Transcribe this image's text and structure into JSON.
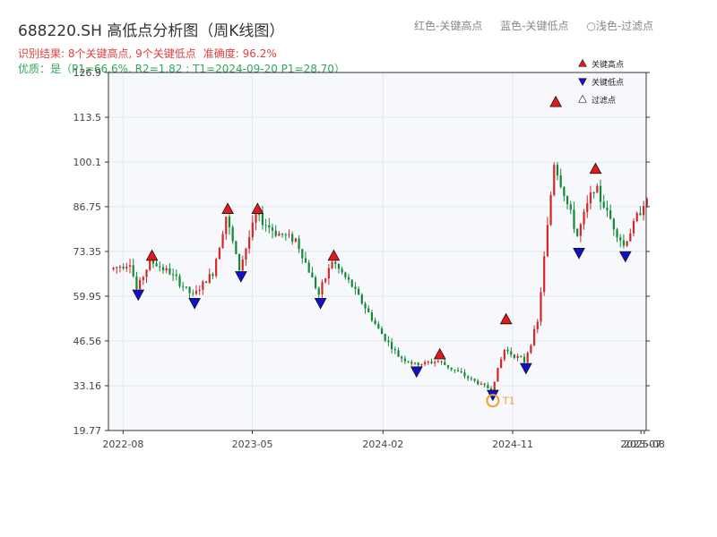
{
  "header": {
    "title": "688220.SH 高低点分析图（周K线图）",
    "legend_high": "红色-关键高点",
    "legend_low": "蓝色-关键低点",
    "legend_filtered": "○浅色-过滤点",
    "result": "识别结果: 8个关键高点, 9个关键低点",
    "accuracy": "准确度: 96.2%",
    "quality": "优质：是（P1=66.6%, R2=1.82 ; T1=2024-09-20 P1=28.70）"
  },
  "colors": {
    "up": "#d62728",
    "down": "#138a36",
    "high_marker": "#e81818",
    "low_marker": "#1010d0",
    "t1_marker": "#f0a030",
    "plot_bg": "#f6f8fb",
    "grid": "#e3e7ed"
  },
  "chart_data": {
    "type": "candlestick",
    "title": "688220.SH 高低点分析图（周K线图）",
    "x_ticks": [
      "2022-08",
      "2023-05",
      "2024-02",
      "2024-11",
      "2025-07",
      "2025-08"
    ],
    "y_ticks": [
      "19.77",
      "33.16",
      "46.56",
      "59.95",
      "73.35",
      "86.75",
      "100.1",
      "113.5",
      "126.9"
    ],
    "ylim": [
      19.77,
      126.9
    ],
    "xlim": [
      "2022-07-01",
      "2025-08-10"
    ],
    "grid": true,
    "legend_position": "top-right",
    "legend": {
      "high": "关键高点",
      "low": "关键低点",
      "filtered": "过滤点"
    },
    "key_highs": [
      {
        "date": "2022-10-01",
        "price": 72.0
      },
      {
        "date": "2023-03-10",
        "price": 86.0
      },
      {
        "date": "2023-05-12",
        "price": 86.0
      },
      {
        "date": "2023-10-20",
        "price": 72.0
      },
      {
        "date": "2024-05-31",
        "price": 42.5
      },
      {
        "date": "2024-10-18",
        "price": 53.0
      },
      {
        "date": "2025-01-31",
        "price": 118.0
      },
      {
        "date": "2025-04-25",
        "price": 98.0
      }
    ],
    "key_lows": [
      {
        "date": "2022-09-02",
        "price": 60.5
      },
      {
        "date": "2022-12-30",
        "price": 58.0
      },
      {
        "date": "2023-04-07",
        "price": 66.0
      },
      {
        "date": "2023-09-22",
        "price": 58.0
      },
      {
        "date": "2024-04-12",
        "price": 37.5
      },
      {
        "date": "2024-09-20",
        "price": 30.5
      },
      {
        "date": "2024-11-29",
        "price": 38.5
      },
      {
        "date": "2025-03-21",
        "price": 73.0
      },
      {
        "date": "2025-06-27",
        "price": 72.0
      }
    ],
    "t1": {
      "label": "T1",
      "date": "2024-09-20",
      "price": 28.7
    },
    "path_knots": [
      [
        "2022-07-08",
        68
      ],
      [
        "2022-08-19",
        70
      ],
      [
        "2022-09-02",
        62
      ],
      [
        "2022-10-01",
        70.5
      ],
      [
        "2022-11-11",
        67
      ],
      [
        "2022-12-30",
        60
      ],
      [
        "2023-02-10",
        67
      ],
      [
        "2023-03-10",
        84
      ],
      [
        "2023-04-07",
        68
      ],
      [
        "2023-05-12",
        84
      ],
      [
        "2023-06-23",
        79
      ],
      [
        "2023-08-04",
        77
      ],
      [
        "2023-09-22",
        60.5
      ],
      [
        "2023-10-20",
        70.5
      ],
      [
        "2023-12-01",
        63
      ],
      [
        "2024-01-26",
        50
      ],
      [
        "2024-03-08",
        42
      ],
      [
        "2024-04-12",
        39.5
      ],
      [
        "2024-05-31",
        40.5
      ],
      [
        "2024-08-09",
        35
      ],
      [
        "2024-09-20",
        32
      ],
      [
        "2024-10-18",
        44
      ],
      [
        "2024-11-29",
        40.5
      ],
      [
        "2024-12-27",
        52
      ],
      [
        "2025-01-31",
        100
      ],
      [
        "2025-03-21",
        78
      ],
      [
        "2025-04-25",
        93
      ],
      [
        "2025-06-27",
        75
      ],
      [
        "2025-08-08",
        88
      ]
    ]
  }
}
